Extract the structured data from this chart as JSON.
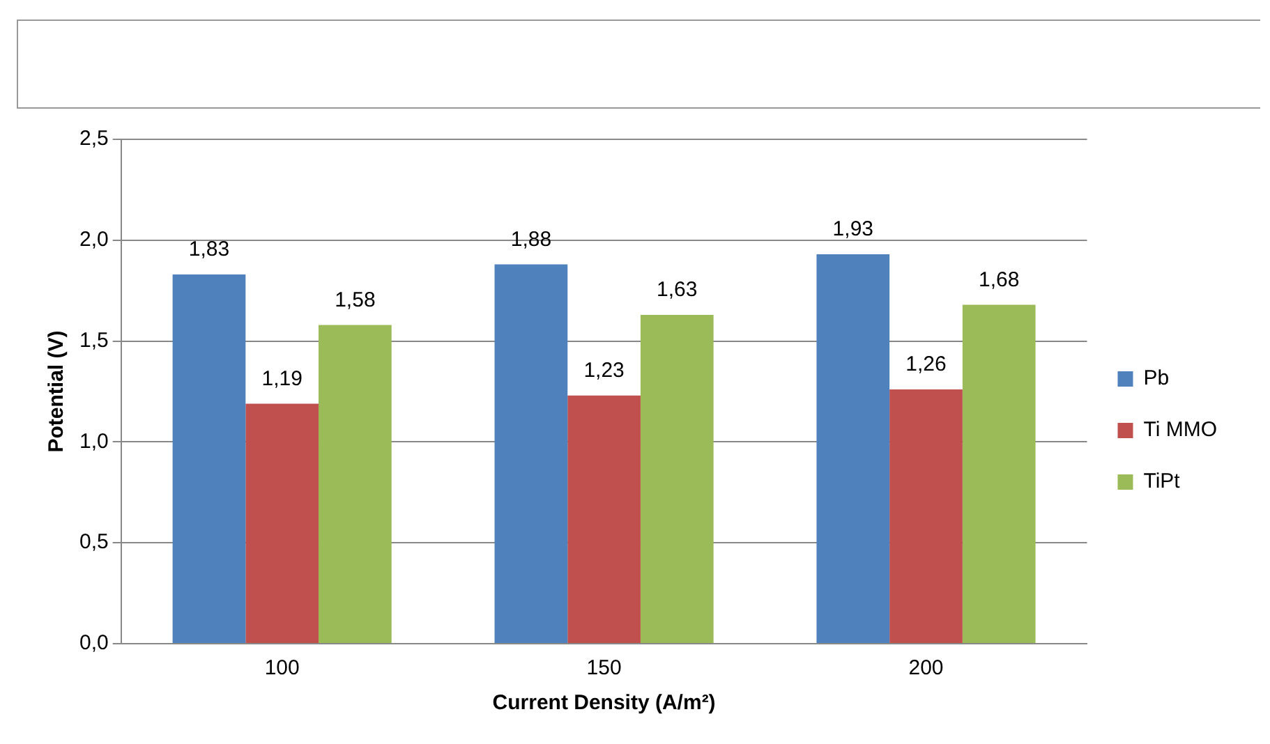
{
  "chart_data": {
    "type": "bar",
    "xlabel": "Current Density (A/m²)",
    "ylabel": "Potential (V)",
    "categories": [
      "100",
      "150",
      "200"
    ],
    "series": [
      {
        "name": "Pb",
        "color": "#4f81bd",
        "values": [
          1.83,
          1.88,
          1.93
        ],
        "value_labels": [
          "1,83",
          "1,88",
          "1,93"
        ]
      },
      {
        "name": "Ti MMO",
        "color": "#c0504d",
        "values": [
          1.19,
          1.23,
          1.26
        ],
        "value_labels": [
          "1,19",
          "1,23",
          "1,26"
        ]
      },
      {
        "name": "TiPt",
        "color": "#9bbb59",
        "values": [
          1.58,
          1.63,
          1.68
        ],
        "value_labels": [
          "1,58",
          "1,63",
          "1,68"
        ]
      }
    ],
    "ylim": [
      0,
      2.5
    ],
    "yticks": [
      {
        "value": 0,
        "label": "0,0"
      },
      {
        "value": 0.5,
        "label": "0,5"
      },
      {
        "value": 1,
        "label": "1,0"
      },
      {
        "value": 1.5,
        "label": "1,5"
      },
      {
        "value": 2,
        "label": "2,0"
      },
      {
        "value": 2.5,
        "label": "2,5"
      }
    ],
    "grid": "y",
    "legend": "right"
  }
}
